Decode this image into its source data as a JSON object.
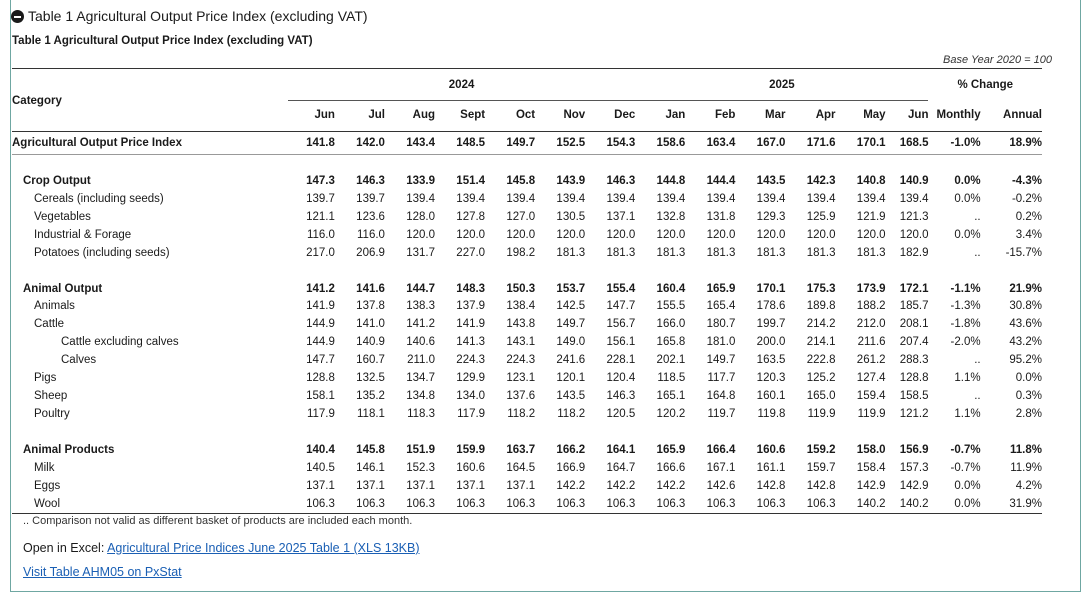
{
  "toggle_label": "Table 1 Agricultural Output Price Index (excluding VAT)",
  "table_title": "Table 1 Agricultural Output Price Index (excluding VAT)",
  "base_year": "Base Year 2020 = 100",
  "header": {
    "category": "Category",
    "year_2024": "2024",
    "year_2025": "2025",
    "pct_change": "% Change",
    "months": [
      "Jun",
      "Jul",
      "Aug",
      "Sept",
      "Oct",
      "Nov",
      "Dec",
      "Jan",
      "Feb",
      "Mar",
      "Apr",
      "May",
      "Jun"
    ],
    "monthly": "Monthly",
    "annual": "Annual"
  },
  "rows": [
    {
      "label": "Agricultural Output Price Index",
      "bold": true,
      "indent": 0,
      "main": true,
      "values": [
        "141.8",
        "142.0",
        "143.4",
        "148.5",
        "149.7",
        "152.5",
        "154.3",
        "158.6",
        "163.4",
        "167.0",
        "171.6",
        "170.1",
        "168.5"
      ],
      "monthly": "-1.0%",
      "annual": "18.9%"
    },
    {
      "spacer": true
    },
    {
      "label": "Crop Output",
      "bold": true,
      "indent": 1,
      "values": [
        "147.3",
        "146.3",
        "133.9",
        "151.4",
        "145.8",
        "143.9",
        "146.3",
        "144.8",
        "144.4",
        "143.5",
        "142.3",
        "140.8",
        "140.9"
      ],
      "monthly": "0.0%",
      "annual": "-4.3%"
    },
    {
      "label": "Cereals (including seeds)",
      "bold": false,
      "indent": 2,
      "values": [
        "139.7",
        "139.7",
        "139.4",
        "139.4",
        "139.4",
        "139.4",
        "139.4",
        "139.4",
        "139.4",
        "139.4",
        "139.4",
        "139.4",
        "139.4"
      ],
      "monthly": "0.0%",
      "annual": "-0.2%"
    },
    {
      "label": "Vegetables",
      "bold": false,
      "indent": 2,
      "values": [
        "121.1",
        "123.6",
        "128.0",
        "127.8",
        "127.0",
        "130.5",
        "137.1",
        "132.8",
        "131.8",
        "129.3",
        "125.9",
        "121.9",
        "121.3"
      ],
      "monthly": "..",
      "annual": "0.2%"
    },
    {
      "label": "Industrial & Forage",
      "bold": false,
      "indent": 2,
      "values": [
        "116.0",
        "116.0",
        "120.0",
        "120.0",
        "120.0",
        "120.0",
        "120.0",
        "120.0",
        "120.0",
        "120.0",
        "120.0",
        "120.0",
        "120.0"
      ],
      "monthly": "0.0%",
      "annual": "3.4%"
    },
    {
      "label": "Potatoes (including seeds)",
      "bold": false,
      "indent": 2,
      "values": [
        "217.0",
        "206.9",
        "131.7",
        "227.0",
        "198.2",
        "181.3",
        "181.3",
        "181.3",
        "181.3",
        "181.3",
        "181.3",
        "181.3",
        "182.9"
      ],
      "monthly": "..",
      "annual": "-15.7%"
    },
    {
      "spacer": true
    },
    {
      "label": "Animal Output",
      "bold": true,
      "indent": 1,
      "values": [
        "141.2",
        "141.6",
        "144.7",
        "148.3",
        "150.3",
        "153.7",
        "155.4",
        "160.4",
        "165.9",
        "170.1",
        "175.3",
        "173.9",
        "172.1"
      ],
      "monthly": "-1.1%",
      "annual": "21.9%"
    },
    {
      "label": "Animals",
      "bold": false,
      "indent": 2,
      "values": [
        "141.9",
        "137.8",
        "138.3",
        "137.9",
        "138.4",
        "142.5",
        "147.7",
        "155.5",
        "165.4",
        "178.6",
        "189.8",
        "188.2",
        "185.7"
      ],
      "monthly": "-1.3%",
      "annual": "30.8%"
    },
    {
      "label": "Cattle",
      "bold": false,
      "indent": 2.5,
      "values": [
        "144.9",
        "141.0",
        "141.2",
        "141.9",
        "143.8",
        "149.7",
        "156.7",
        "166.0",
        "180.7",
        "199.7",
        "214.2",
        "212.0",
        "208.1"
      ],
      "monthly": "-1.8%",
      "annual": "43.6%"
    },
    {
      "label": "Cattle excluding calves",
      "bold": false,
      "indent": 3,
      "values": [
        "144.9",
        "140.9",
        "140.6",
        "141.3",
        "143.1",
        "149.0",
        "156.1",
        "165.8",
        "181.0",
        "200.0",
        "214.1",
        "211.6",
        "207.4"
      ],
      "monthly": "-2.0%",
      "annual": "43.2%"
    },
    {
      "label": "Calves",
      "bold": false,
      "indent": 3,
      "values": [
        "147.7",
        "160.7",
        "211.0",
        "224.3",
        "224.3",
        "241.6",
        "228.1",
        "202.1",
        "149.7",
        "163.5",
        "222.8",
        "261.2",
        "288.3"
      ],
      "monthly": "..",
      "annual": "95.2%"
    },
    {
      "label": "Pigs",
      "bold": false,
      "indent": 2.5,
      "values": [
        "128.8",
        "132.5",
        "134.7",
        "129.9",
        "123.1",
        "120.1",
        "120.4",
        "118.5",
        "117.7",
        "120.3",
        "125.2",
        "127.4",
        "128.8"
      ],
      "monthly": "1.1%",
      "annual": "0.0%"
    },
    {
      "label": "Sheep",
      "bold": false,
      "indent": 2.5,
      "values": [
        "158.1",
        "135.2",
        "134.8",
        "134.0",
        "137.6",
        "143.5",
        "146.3",
        "165.1",
        "164.8",
        "160.1",
        "165.0",
        "159.4",
        "158.5"
      ],
      "monthly": "..",
      "annual": "0.3%"
    },
    {
      "label": "Poultry",
      "bold": false,
      "indent": 2.5,
      "values": [
        "117.9",
        "118.1",
        "118.3",
        "117.9",
        "118.2",
        "118.2",
        "120.5",
        "120.2",
        "119.7",
        "119.8",
        "119.9",
        "119.9",
        "121.2"
      ],
      "monthly": "1.1%",
      "annual": "2.8%"
    },
    {
      "spacer": true
    },
    {
      "label": "Animal Products",
      "bold": true,
      "indent": 1,
      "values": [
        "140.4",
        "145.8",
        "151.9",
        "159.9",
        "163.7",
        "166.2",
        "164.1",
        "165.9",
        "166.4",
        "160.6",
        "159.2",
        "158.0",
        "156.9"
      ],
      "monthly": "-0.7%",
      "annual": "11.8%"
    },
    {
      "label": "Milk",
      "bold": false,
      "indent": 2,
      "values": [
        "140.5",
        "146.1",
        "152.3",
        "160.6",
        "164.5",
        "166.9",
        "164.7",
        "166.6",
        "167.1",
        "161.1",
        "159.7",
        "158.4",
        "157.3"
      ],
      "monthly": "-0.7%",
      "annual": "11.9%"
    },
    {
      "label": "Eggs",
      "bold": false,
      "indent": 2,
      "values": [
        "137.1",
        "137.1",
        "137.1",
        "137.1",
        "137.1",
        "142.2",
        "142.2",
        "142.2",
        "142.6",
        "142.8",
        "142.8",
        "142.9",
        "142.9"
      ],
      "monthly": "0.0%",
      "annual": "4.2%"
    },
    {
      "label": "Wool",
      "bold": false,
      "indent": 2,
      "last": true,
      "values": [
        "106.3",
        "106.3",
        "106.3",
        "106.3",
        "106.3",
        "106.3",
        "106.3",
        "106.3",
        "106.3",
        "106.3",
        "106.3",
        "140.2",
        "140.2"
      ],
      "monthly": "0.0%",
      "annual": "31.9%"
    }
  ],
  "footnote": ".. Comparison not valid as different basket of products are included each month.",
  "excel_prefix": "Open in Excel: ",
  "excel_link": "Agricultural Price Indices June 2025 Table 1 (XLS 13KB)",
  "pxstat_link": "Visit Table AHM05 on PxStat"
}
